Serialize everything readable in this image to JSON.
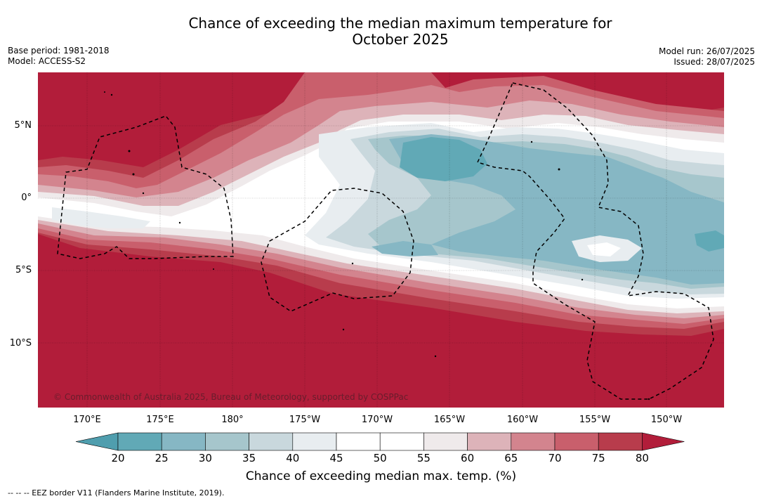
{
  "header": {
    "title_line1": "Chance of exceeding the median maximum temperature for",
    "title_line2": "October 2025",
    "base_period": "Base period: 1981-2018",
    "model": "Model: ACCESS-S2",
    "model_run": "Model run: 26/07/2025",
    "issued": "Issued: 28/07/2025"
  },
  "map": {
    "lat_labels": [
      "5°N",
      "0°",
      "5°S",
      "10°S"
    ],
    "lon_labels": [
      "170°E",
      "175°E",
      "180°",
      "175°W",
      "170°W",
      "165°W",
      "160°W",
      "155°W",
      "150°W"
    ],
    "copyright": "© Commonwealth of Australia 2025, Bureau of Meteorology, supported by COSPPac",
    "colors": {
      "c20": "#61a9b6",
      "c25": "#86b7c4",
      "c30": "#a6c6cc",
      "c35": "#c9d8dd",
      "c40": "#e8edf0",
      "c45": "#ffffff",
      "c55": "#efeaeb",
      "c60": "#ddb3b9",
      "c65": "#d3848e",
      "c70": "#c95f6c",
      "c75": "#b83c4c",
      "c80": "#b21d3a"
    }
  },
  "colorbar": {
    "ticks": [
      "20",
      "25",
      "30",
      "35",
      "40",
      "45",
      "50",
      "55",
      "60",
      "65",
      "70",
      "75",
      "80"
    ],
    "colors": [
      "#61a9b6",
      "#86b7c4",
      "#a6c6cc",
      "#c9d8dd",
      "#e8edf0",
      "#ffffff",
      "#ffffff",
      "#efeaeb",
      "#ddb3b9",
      "#d3848e",
      "#c95f6c",
      "#b83c4c"
    ],
    "low_color": "#4f9eae",
    "high_color": "#b21d3a",
    "label": "Chance of exceeding median max. temp. (%)"
  },
  "footer": {
    "legend": "--  --  -- EEZ border V11 (Flanders Marine Institute, 2019)."
  }
}
